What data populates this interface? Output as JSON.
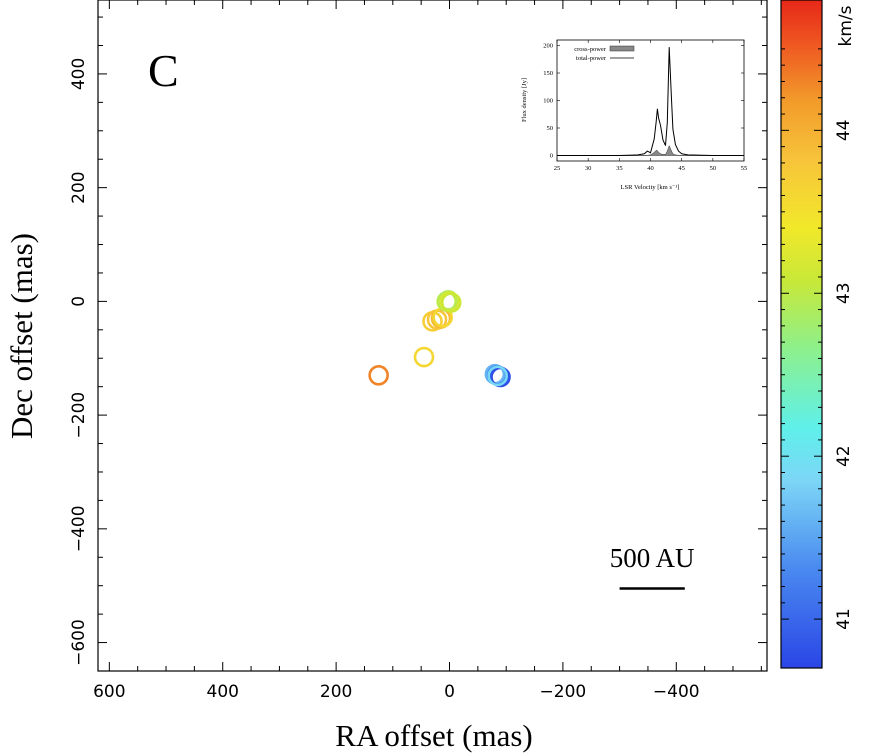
{
  "chart_data": [
    {
      "type": "scatter",
      "panel_label": "C",
      "xlabel": "RA offset (mas)",
      "ylabel": "Dec offset (mas)",
      "xlim": [
        620,
        -560
      ],
      "ylim": [
        -650,
        530
      ],
      "xticks": [
        600,
        400,
        200,
        0,
        -200,
        -400
      ],
      "xtick_labels": [
        "600",
        "400",
        "200",
        "0",
        "−200",
        "−400"
      ],
      "yticks": [
        400,
        200,
        0,
        -200,
        -400,
        -600
      ],
      "ytick_labels": [
        "400",
        "200",
        "0",
        "−200",
        "−400",
        "−600"
      ],
      "scale_bar": {
        "label": "500 AU",
        "length_mas": 115,
        "start_x": -300,
        "y": -505
      },
      "spots": [
        {
          "x": 125,
          "y": -130,
          "velocity": 44.3
        },
        {
          "x": 45,
          "y": -98,
          "velocity": 43.6
        },
        {
          "x": 30,
          "y": -35,
          "velocity": 43.7
        },
        {
          "x": 22,
          "y": -32,
          "velocity": 43.8
        },
        {
          "x": 15,
          "y": -30,
          "velocity": 43.9
        },
        {
          "x": 12,
          "y": -28,
          "velocity": 43.6
        },
        {
          "x": 5,
          "y": 0,
          "velocity": 43.0
        },
        {
          "x": 2,
          "y": 2,
          "velocity": 42.9
        },
        {
          "x": 0,
          "y": 0,
          "velocity": 43.2
        },
        {
          "x": -3,
          "y": -2,
          "velocity": 43.1
        },
        {
          "x": -80,
          "y": -128,
          "velocity": 41.6
        },
        {
          "x": -84,
          "y": -130,
          "velocity": 41.3
        },
        {
          "x": -88,
          "y": -132,
          "velocity": 41.0
        },
        {
          "x": -90,
          "y": -133,
          "velocity": 40.8
        },
        {
          "x": -85,
          "y": -131,
          "velocity": 41.9
        }
      ]
    },
    {
      "type": "colorbar",
      "label": "km/s",
      "vlim": [
        40.7,
        44.8
      ],
      "ticks": [
        41,
        42,
        43,
        44
      ],
      "tick_labels": [
        "41",
        "42",
        "43",
        "44"
      ]
    },
    {
      "type": "line",
      "title": "",
      "xlabel": "LSR Velocity [km s⁻¹]",
      "ylabel": "Flux density [Jy]",
      "xlim": [
        25,
        55
      ],
      "ylim": [
        -10,
        210
      ],
      "xticks": [
        25,
        30,
        35,
        40,
        45,
        50,
        55
      ],
      "xtick_labels": [
        "25",
        "30",
        "35",
        "40",
        "45",
        "50",
        "55"
      ],
      "yticks": [
        0,
        50,
        100,
        150,
        200
      ],
      "ytick_labels": [
        "0",
        "50",
        "100",
        "150",
        "200"
      ],
      "legend": [
        "cross-power",
        "total-power"
      ],
      "series": [
        {
          "name": "total-power",
          "x": [
            25,
            30,
            35,
            38,
            39,
            39.5,
            40,
            40.6,
            40.9,
            41.1,
            41.3,
            41.6,
            42,
            42.4,
            42.7,
            43,
            43.3,
            43.6,
            44,
            44.5,
            45,
            46,
            50,
            55
          ],
          "y": [
            0,
            0,
            0,
            1,
            3,
            8,
            5,
            30,
            60,
            85,
            68,
            55,
            28,
            18,
            60,
            197,
            118,
            48,
            20,
            8,
            3,
            1,
            0,
            0
          ]
        },
        {
          "name": "cross-power",
          "x": [
            25,
            39,
            40,
            40.5,
            41,
            41.3,
            41.6,
            42,
            42.4,
            42.7,
            43,
            43.3,
            43.6,
            44,
            45,
            55
          ],
          "y": [
            0,
            0,
            1,
            5,
            10,
            6,
            3,
            2,
            2,
            8,
            18,
            10,
            3,
            1,
            0,
            0
          ]
        }
      ]
    }
  ]
}
